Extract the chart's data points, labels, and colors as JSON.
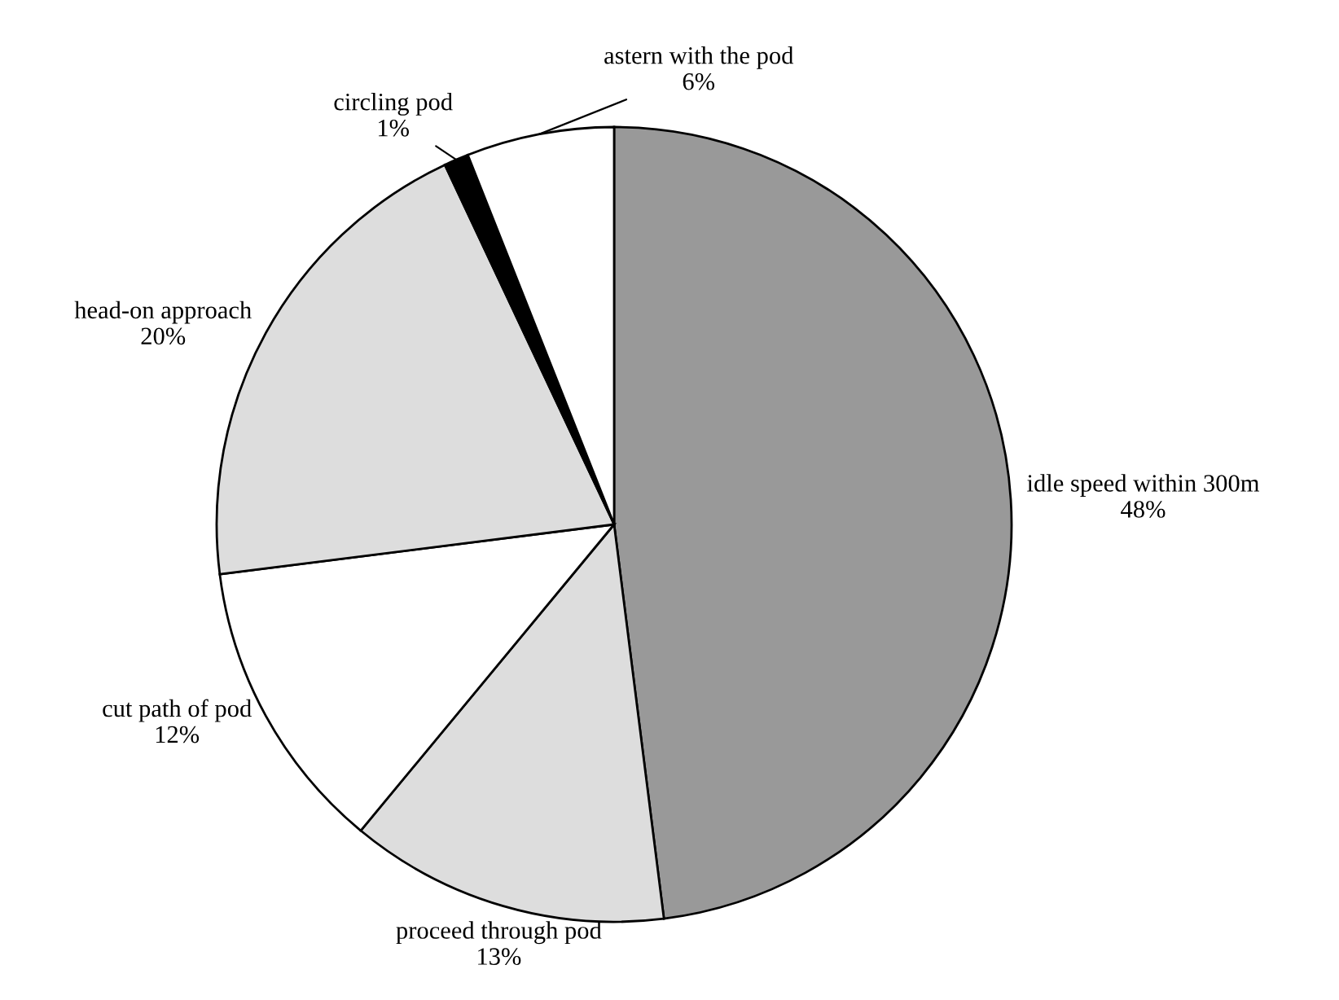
{
  "chart_data": {
    "type": "pie",
    "categories": [
      "idle speed within 300m",
      "proceed through pod",
      "cut path of pod",
      "head-on approach",
      "circling pod",
      "astern with the pod"
    ],
    "values": [
      48,
      13,
      12,
      20,
      1,
      6
    ],
    "value_labels": [
      "48%",
      "13%",
      "12%",
      "20%",
      "1%",
      "6%"
    ],
    "colors": [
      "#999999",
      "#dddddd",
      "#ffffff",
      "#dddddd",
      "#000000",
      "#ffffff"
    ],
    "legend": false
  }
}
